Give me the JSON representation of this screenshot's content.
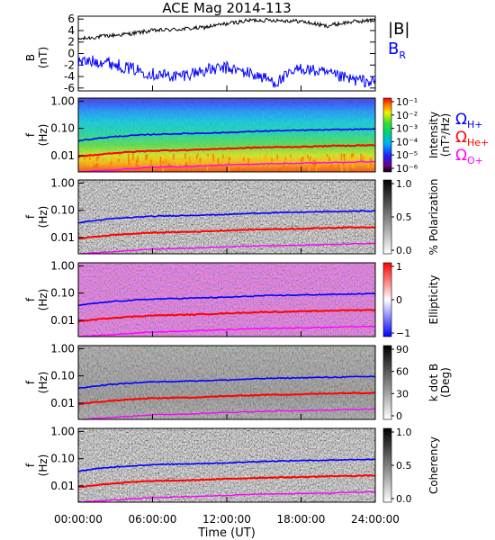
{
  "figure": {
    "title": "ACE Mag 2014-113",
    "xlabel": "Time (UT)",
    "xticks": [
      "00:00:00",
      "06:00:00",
      "12:00:00",
      "18:00:00",
      "24:00:00"
    ],
    "xrange_hours": [
      0,
      24
    ]
  },
  "mag_panel": {
    "ylabel": "B",
    "yunit": "(nT)",
    "yticks": [
      "6",
      "4",
      "2",
      "0",
      "-2",
      "-4",
      "-6"
    ],
    "ylim": [
      -6.5,
      6.5
    ],
    "legend_B": "|B|",
    "legend_BR_main": "B",
    "legend_BR_sub": "R",
    "colors": {
      "B": "#000000",
      "BR": "#0000ff"
    }
  },
  "freq_axis": {
    "ylabel": "f",
    "yunit": "(Hz)",
    "yticks": [
      "1.00",
      "0.10",
      "0.01"
    ],
    "ylim_hz": [
      0.0025,
      1.3
    ],
    "scale": "log"
  },
  "gyro_legend": {
    "omega": "Ω",
    "h_sub": "H+",
    "he_sub": "He+",
    "o_sub": "O+",
    "colors": {
      "h": "#0000ff",
      "he": "#ff0000",
      "o": "#ff00ff"
    }
  },
  "panels": [
    {
      "id": "intensity",
      "colorbar_label_1": "Intensity",
      "colorbar_label_2": "(nT²/Hz)",
      "cbar_ticks": [
        "10⁻¹",
        "10⁻²",
        "10⁻³",
        "10⁻⁴",
        "10⁻⁵",
        "10⁻⁶"
      ]
    },
    {
      "id": "polarization",
      "colorbar_label_1": "% Polarization",
      "colorbar_label_2": "",
      "cbar_ticks": [
        "1.0",
        "0.5",
        "0.0"
      ]
    },
    {
      "id": "ellipticity",
      "colorbar_label_1": "Ellipticity",
      "colorbar_label_2": "",
      "cbar_ticks": [
        "1",
        "0",
        "−1"
      ]
    },
    {
      "id": "kdotb",
      "colorbar_label_1": "k dot B",
      "colorbar_label_2": "(Deg)",
      "cbar_ticks": [
        "90",
        "60",
        "30",
        "0"
      ]
    },
    {
      "id": "coherency",
      "colorbar_label_1": "Coherency",
      "colorbar_label_2": "",
      "cbar_ticks": [
        "1.0",
        "0.5",
        "0.0"
      ]
    }
  ],
  "chart_data": [
    {
      "type": "line",
      "title": "ACE Mag 2014-113",
      "xlabel": "Time (UT)",
      "ylabel": "B (nT)",
      "x": [
        0,
        2,
        4,
        6,
        8,
        10,
        12,
        14,
        16,
        18,
        20,
        22,
        24
      ],
      "ylim": [
        -6.5,
        6.5
      ],
      "series": [
        {
          "name": "|B|",
          "values": [
            2.5,
            3.0,
            3.4,
            4.0,
            4.2,
            4.5,
            5.2,
            5.8,
            5.8,
            5.6,
            4.8,
            5.5,
            5.8
          ]
        },
        {
          "name": "B_R",
          "values": [
            -1.5,
            -1.3,
            -2.5,
            -3.5,
            -4.0,
            -3.0,
            -2.5,
            -3.5,
            -5.0,
            -2.5,
            -3.5,
            -4.5,
            -5.0
          ]
        }
      ]
    },
    {
      "type": "line",
      "ylabel": "f (Hz)",
      "yscale": "log",
      "x": [
        0,
        3,
        6,
        9,
        12,
        15,
        18,
        21,
        24
      ],
      "series": [
        {
          "name": "Ω H+",
          "values": [
            0.035,
            0.05,
            0.06,
            0.065,
            0.07,
            0.08,
            0.085,
            0.09,
            0.095
          ]
        },
        {
          "name": "Ω He+",
          "values": [
            0.009,
            0.0125,
            0.015,
            0.016,
            0.018,
            0.02,
            0.021,
            0.023,
            0.024
          ]
        },
        {
          "name": "Ω O+",
          "values": [
            0.0025,
            0.003,
            0.0037,
            0.004,
            0.0045,
            0.005,
            0.0052,
            0.0056,
            0.006
          ]
        }
      ]
    }
  ]
}
